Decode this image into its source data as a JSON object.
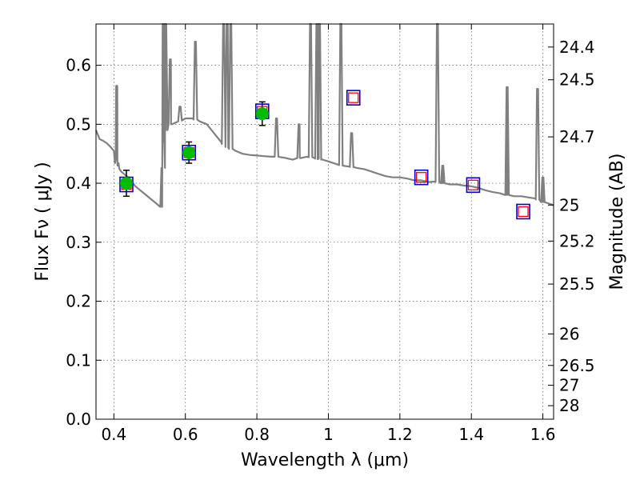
{
  "chart_data": {
    "type": "scatter",
    "xlabel": "Wavelength  λ (μm)",
    "ylabel": "Flux  Fν  ( μJy )",
    "ylabel_right": "Magnitude (AB)",
    "xlim": [
      0.35,
      1.63
    ],
    "ylim": [
      0.0,
      0.67
    ],
    "grid": true,
    "x_ticks": [
      {
        "value": 0.4,
        "label": "0.4"
      },
      {
        "value": 0.6,
        "label": "0.6"
      },
      {
        "value": 0.8,
        "label": "0.8"
      },
      {
        "value": 1.0,
        "label": "1"
      },
      {
        "value": 1.2,
        "label": "1.2"
      },
      {
        "value": 1.4,
        "label": "1.4"
      },
      {
        "value": 1.6,
        "label": "1.6"
      }
    ],
    "y_ticks": [
      {
        "value": 0.0,
        "label": "0.0"
      },
      {
        "value": 0.1,
        "label": "0.1"
      },
      {
        "value": 0.2,
        "label": "0.2"
      },
      {
        "value": 0.3,
        "label": "0.3"
      },
      {
        "value": 0.4,
        "label": "0.4"
      },
      {
        "value": 0.5,
        "label": "0.5"
      },
      {
        "value": 0.6,
        "label": "0.6"
      }
    ],
    "mag_ticks": [
      {
        "value": 24.4,
        "label": "24.4"
      },
      {
        "value": 24.5,
        "label": "24.5"
      },
      {
        "value": 24.7,
        "label": "24.7"
      },
      {
        "value": 25.0,
        "label": "25"
      },
      {
        "value": 25.2,
        "label": "25.2"
      },
      {
        "value": 25.5,
        "label": "25.5"
      },
      {
        "value": 26.0,
        "label": "26"
      },
      {
        "value": 26.5,
        "label": "26.5"
      },
      {
        "value": 27.0,
        "label": "27"
      },
      {
        "value": 28.0,
        "label": "28"
      }
    ],
    "template_spectrum": {
      "color": "#808080",
      "x": [
        0.35,
        0.36,
        0.37,
        0.38,
        0.39,
        0.4,
        0.405,
        0.41,
        0.415,
        0.42,
        0.44,
        0.46,
        0.48,
        0.5,
        0.52,
        0.53,
        0.535,
        0.54,
        0.545,
        0.55,
        0.56,
        0.58,
        0.6,
        0.62,
        0.64,
        0.66,
        0.68,
        0.7,
        0.72,
        0.74,
        0.76,
        0.78,
        0.8,
        0.82,
        0.84,
        0.86,
        0.88,
        0.9,
        0.92,
        0.94,
        0.96,
        0.98,
        1.0,
        1.02,
        1.04,
        1.06,
        1.08,
        1.1,
        1.12,
        1.14,
        1.16,
        1.18,
        1.2,
        1.22,
        1.24,
        1.26,
        1.28,
        1.3,
        1.32,
        1.34,
        1.36,
        1.38,
        1.4,
        1.42,
        1.44,
        1.46,
        1.48,
        1.5,
        1.52,
        1.54,
        1.56,
        1.58,
        1.6,
        1.63
      ],
      "flux": [
        0.49,
        0.475,
        0.472,
        0.468,
        0.462,
        0.455,
        0.44,
        0.43,
        0.425,
        0.42,
        0.41,
        0.395,
        0.385,
        0.375,
        0.365,
        0.36,
        0.36,
        0.47,
        0.49,
        0.5,
        0.5,
        0.505,
        0.51,
        0.51,
        0.505,
        0.5,
        0.485,
        0.47,
        0.46,
        0.455,
        0.45,
        0.448,
        0.447,
        0.446,
        0.445,
        0.445,
        0.443,
        0.44,
        0.443,
        0.445,
        0.443,
        0.44,
        0.437,
        0.433,
        0.43,
        0.428,
        0.426,
        0.424,
        0.42,
        0.416,
        0.412,
        0.41,
        0.41,
        0.408,
        0.405,
        0.405,
        0.402,
        0.403,
        0.4,
        0.398,
        0.398,
        0.396,
        0.395,
        0.392,
        0.388,
        0.385,
        0.383,
        0.38,
        0.378,
        0.378,
        0.376,
        0.374,
        0.368,
        0.363
      ],
      "emission_lines": [
        {
          "x": 0.408,
          "peak": 0.565
        },
        {
          "x": 0.538,
          "peak": 0.67
        },
        {
          "x": 0.545,
          "peak": 0.67
        },
        {
          "x": 0.558,
          "peak": 0.61
        },
        {
          "x": 0.585,
          "peak": 0.53
        },
        {
          "x": 0.628,
          "peak": 0.64
        },
        {
          "x": 0.707,
          "peak": 0.67
        },
        {
          "x": 0.717,
          "peak": 0.67
        },
        {
          "x": 0.727,
          "peak": 0.67
        },
        {
          "x": 0.855,
          "peak": 0.51
        },
        {
          "x": 0.918,
          "peak": 0.5
        },
        {
          "x": 0.95,
          "peak": 0.67
        },
        {
          "x": 0.968,
          "peak": 0.67
        },
        {
          "x": 0.975,
          "peak": 0.67
        },
        {
          "x": 1.035,
          "peak": 0.67
        },
        {
          "x": 1.065,
          "peak": 0.485
        },
        {
          "x": 1.305,
          "peak": 0.67
        },
        {
          "x": 1.32,
          "peak": 0.43
        },
        {
          "x": 1.5,
          "peak": 0.563
        },
        {
          "x": 1.585,
          "peak": 0.56
        },
        {
          "x": 1.6,
          "peak": 0.41
        }
      ]
    },
    "observed_points": {
      "color": "#00bb00",
      "x": [
        0.435,
        0.61,
        0.815
      ],
      "y": [
        0.4,
        0.452,
        0.518
      ],
      "yerr": [
        0.022,
        0.018,
        0.02
      ]
    },
    "model_points": {
      "color": "#ff0000",
      "x": [
        0.435,
        0.61,
        0.815,
        1.07,
        1.26,
        1.405,
        1.545
      ],
      "y": [
        0.398,
        0.452,
        0.522,
        0.545,
        0.41,
        0.397,
        0.352
      ]
    },
    "model_box_color": "#0000dd"
  }
}
